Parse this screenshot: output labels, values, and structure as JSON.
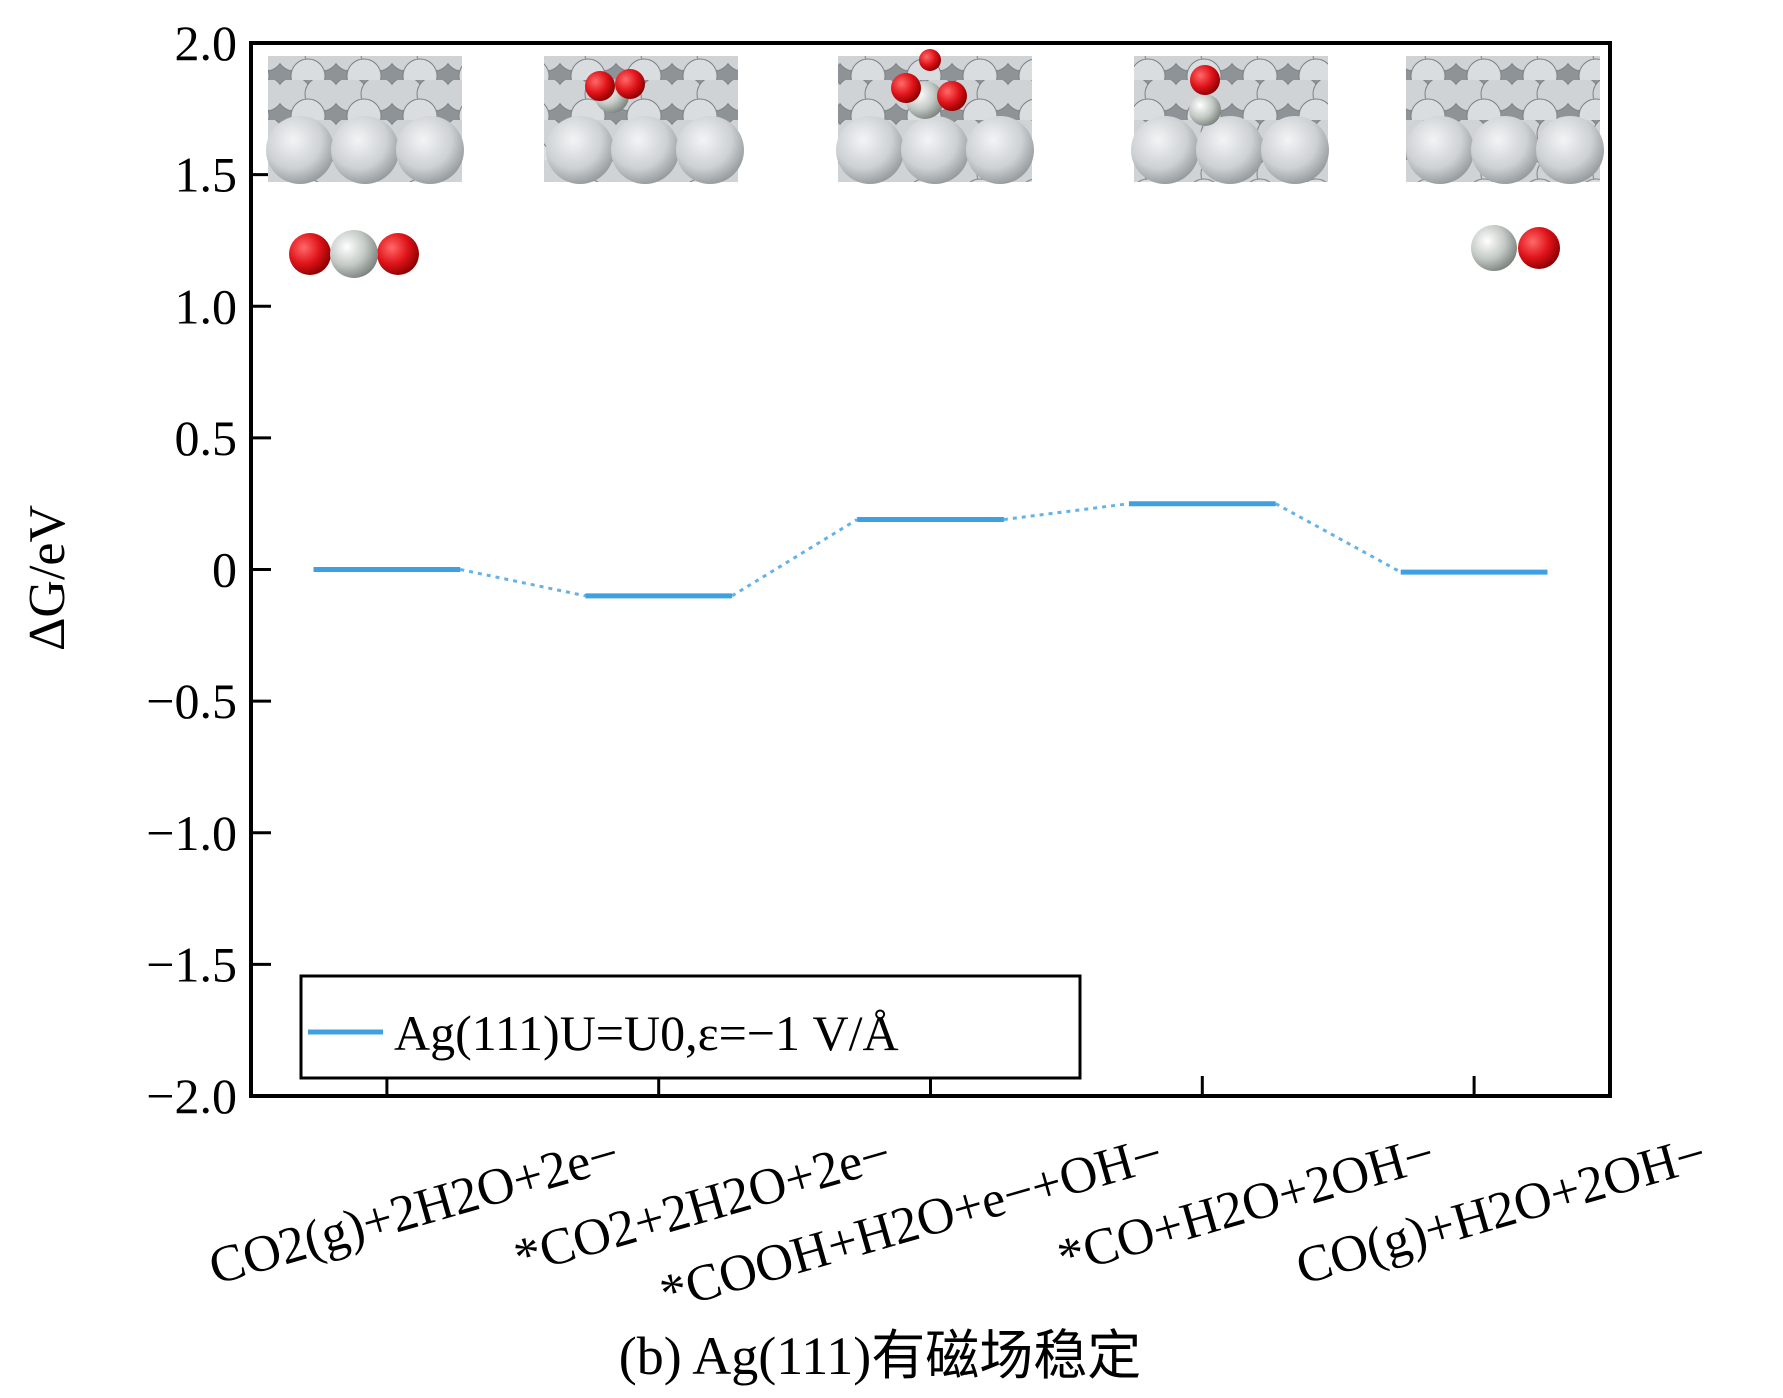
{
  "chart_data": {
    "type": "line",
    "variant": "free-energy-diagram",
    "title": "",
    "caption": "(b) Ag(111)有磁场稳定",
    "ylabel": "ΔG/eV",
    "xlabel": "",
    "ylim": [
      -2.0,
      2.0
    ],
    "yticks": [
      2.0,
      1.5,
      1.0,
      0.5,
      0,
      -0.5,
      -1.0,
      -1.5,
      -2.0
    ],
    "ytick_labels": [
      "2.0",
      "1.5",
      "1.0",
      "0.5",
      "0",
      "−0.5",
      "−1.0",
      "−1.5",
      "−2.0"
    ],
    "grid": false,
    "legend_position": "bottom-left",
    "categories": [
      "CO2(g)+2H2O+2e−",
      "*CO2+2H2O+2e−",
      "*COOH+H2O+e−+OH−",
      "*CO+H2O+2OH−",
      "CO(g)+H2O+2OH−"
    ],
    "series": [
      {
        "name": "Ag(111)U=U0,ε=−1 V/Å",
        "color": "#3ea0e0",
        "values": [
          0.0,
          -0.1,
          0.19,
          0.25,
          -0.01
        ]
      }
    ],
    "insets": [
      "co2-molecule",
      "ag-slab",
      "ag-slab-co2",
      "ag-slab-cooh",
      "ag-slab-co",
      "ag-slab",
      "co-molecule"
    ]
  }
}
